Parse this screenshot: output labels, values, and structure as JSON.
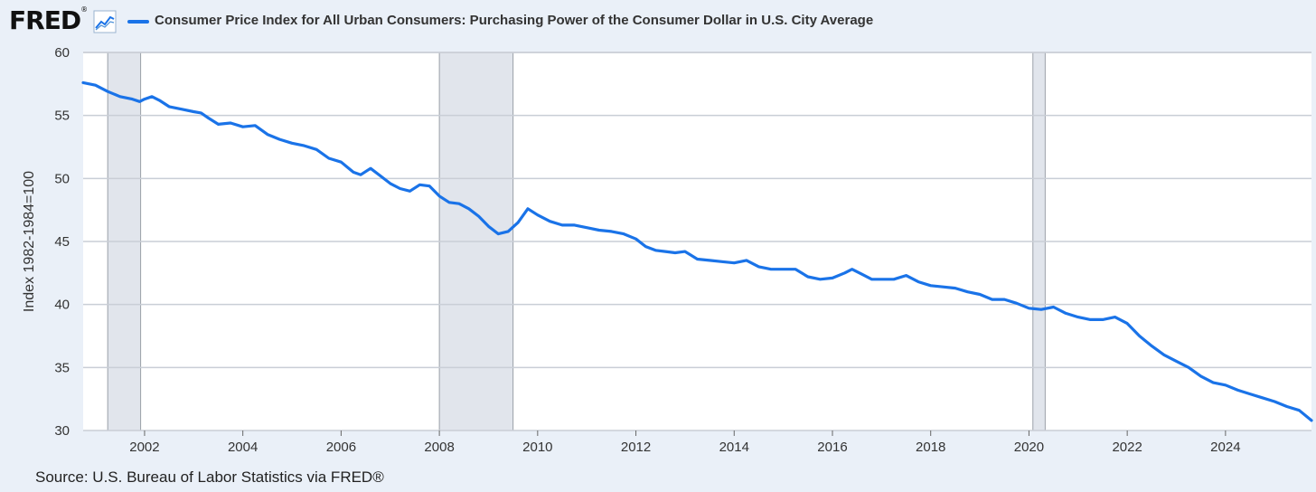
{
  "header": {
    "logo": "FRED",
    "logo_mark": "®",
    "trend_icon": "line-chart-icon",
    "series_title": "Consumer Price Index for All Urban Consumers: Purchasing Power of the Consumer Dollar in U.S. City Average"
  },
  "source": "Source: U.S. Bureau of Labor Statistics via FRED®",
  "colors": {
    "line": "#1a73e8",
    "recession": "#e1e5ec",
    "background": "#eaf0f8",
    "plot": "#ffffff"
  },
  "chart_data": {
    "type": "line",
    "title": "Consumer Price Index for All Urban Consumers: Purchasing Power of the Consumer Dollar in U.S. City Average",
    "xlabel": "",
    "ylabel": "Index 1982-1984=100",
    "xlim": [
      2000.75,
      2025.75
    ],
    "ylim": [
      30,
      60
    ],
    "x_ticks": [
      2002,
      2004,
      2006,
      2008,
      2010,
      2012,
      2014,
      2016,
      2018,
      2020,
      2022,
      2024
    ],
    "y_ticks": [
      30,
      35,
      40,
      45,
      50,
      55,
      60
    ],
    "grid": true,
    "recessions": [
      [
        2001.25,
        2001.92
      ],
      [
        2008.0,
        2009.5
      ],
      [
        2020.08,
        2020.33
      ]
    ],
    "series": [
      {
        "name": "Purchasing Power of the Consumer Dollar",
        "points": [
          [
            2000.75,
            57.6
          ],
          [
            2001.0,
            57.4
          ],
          [
            2001.25,
            56.9
          ],
          [
            2001.5,
            56.5
          ],
          [
            2001.75,
            56.3
          ],
          [
            2001.9,
            56.1
          ],
          [
            2002.0,
            56.3
          ],
          [
            2002.15,
            56.5
          ],
          [
            2002.3,
            56.2
          ],
          [
            2002.5,
            55.7
          ],
          [
            2002.75,
            55.5
          ],
          [
            2003.0,
            55.3
          ],
          [
            2003.15,
            55.2
          ],
          [
            2003.3,
            54.8
          ],
          [
            2003.5,
            54.3
          ],
          [
            2003.75,
            54.4
          ],
          [
            2004.0,
            54.1
          ],
          [
            2004.25,
            54.2
          ],
          [
            2004.5,
            53.5
          ],
          [
            2004.75,
            53.1
          ],
          [
            2005.0,
            52.8
          ],
          [
            2005.25,
            52.6
          ],
          [
            2005.5,
            52.3
          ],
          [
            2005.75,
            51.6
          ],
          [
            2006.0,
            51.3
          ],
          [
            2006.25,
            50.5
          ],
          [
            2006.4,
            50.3
          ],
          [
            2006.6,
            50.8
          ],
          [
            2006.8,
            50.2
          ],
          [
            2007.0,
            49.6
          ],
          [
            2007.2,
            49.2
          ],
          [
            2007.4,
            49.0
          ],
          [
            2007.6,
            49.5
          ],
          [
            2007.8,
            49.4
          ],
          [
            2008.0,
            48.6
          ],
          [
            2008.2,
            48.1
          ],
          [
            2008.4,
            48.0
          ],
          [
            2008.6,
            47.6
          ],
          [
            2008.8,
            47.0
          ],
          [
            2009.0,
            46.2
          ],
          [
            2009.2,
            45.6
          ],
          [
            2009.4,
            45.8
          ],
          [
            2009.6,
            46.5
          ],
          [
            2009.8,
            47.6
          ],
          [
            2010.0,
            47.1
          ],
          [
            2010.25,
            46.6
          ],
          [
            2010.5,
            46.3
          ],
          [
            2010.75,
            46.3
          ],
          [
            2011.0,
            46.1
          ],
          [
            2011.25,
            45.9
          ],
          [
            2011.5,
            45.8
          ],
          [
            2011.75,
            45.6
          ],
          [
            2012.0,
            45.2
          ],
          [
            2012.2,
            44.6
          ],
          [
            2012.4,
            44.3
          ],
          [
            2012.6,
            44.2
          ],
          [
            2012.8,
            44.1
          ],
          [
            2013.0,
            44.2
          ],
          [
            2013.25,
            43.6
          ],
          [
            2013.5,
            43.5
          ],
          [
            2013.75,
            43.4
          ],
          [
            2014.0,
            43.3
          ],
          [
            2014.25,
            43.5
          ],
          [
            2014.5,
            43.0
          ],
          [
            2014.75,
            42.8
          ],
          [
            2015.0,
            42.8
          ],
          [
            2015.25,
            42.8
          ],
          [
            2015.5,
            42.2
          ],
          [
            2015.75,
            42.0
          ],
          [
            2016.0,
            42.1
          ],
          [
            2016.25,
            42.5
          ],
          [
            2016.4,
            42.8
          ],
          [
            2016.6,
            42.4
          ],
          [
            2016.8,
            42.0
          ],
          [
            2017.0,
            42.0
          ],
          [
            2017.25,
            42.0
          ],
          [
            2017.5,
            42.3
          ],
          [
            2017.75,
            41.8
          ],
          [
            2018.0,
            41.5
          ],
          [
            2018.25,
            41.4
          ],
          [
            2018.5,
            41.3
          ],
          [
            2018.75,
            41.0
          ],
          [
            2019.0,
            40.8
          ],
          [
            2019.25,
            40.4
          ],
          [
            2019.5,
            40.4
          ],
          [
            2019.75,
            40.1
          ],
          [
            2020.0,
            39.7
          ],
          [
            2020.25,
            39.6
          ],
          [
            2020.5,
            39.8
          ],
          [
            2020.75,
            39.3
          ],
          [
            2021.0,
            39.0
          ],
          [
            2021.25,
            38.8
          ],
          [
            2021.5,
            38.8
          ],
          [
            2021.75,
            39.0
          ],
          [
            2022.0,
            38.5
          ],
          [
            2022.25,
            37.5
          ],
          [
            2022.5,
            36.7
          ],
          [
            2022.75,
            36.0
          ],
          [
            2023.0,
            35.5
          ],
          [
            2023.25,
            35.0
          ],
          [
            2023.5,
            34.3
          ],
          [
            2023.75,
            33.8
          ],
          [
            2024.0,
            33.6
          ],
          [
            2024.25,
            33.2
          ],
          [
            2024.5,
            32.9
          ],
          [
            2024.75,
            32.6
          ],
          [
            2025.0,
            32.3
          ],
          [
            2025.25,
            31.9
          ],
          [
            2025.5,
            31.6
          ],
          [
            2025.75,
            30.8
          ]
        ]
      }
    ]
  }
}
